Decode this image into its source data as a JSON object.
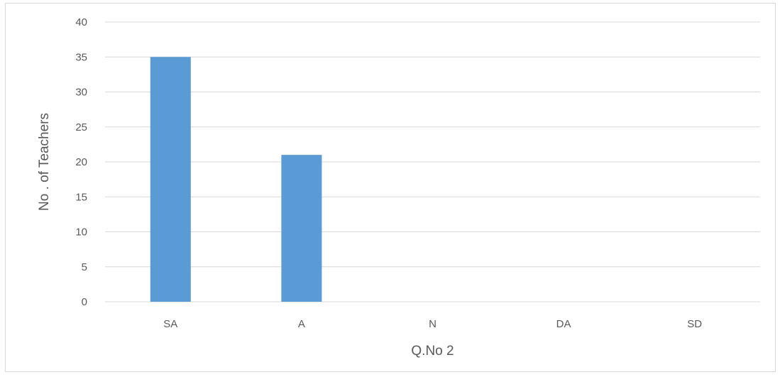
{
  "chart_data": {
    "type": "bar",
    "categories": [
      "SA",
      "A",
      "N",
      "DA",
      "SD"
    ],
    "values": [
      35,
      21,
      0,
      0,
      0
    ],
    "xlabel": "Q.No 2",
    "ylabel": "No . of Teachers",
    "ylim": [
      0,
      40
    ],
    "yticks": [
      "0",
      "5",
      "10",
      "15",
      "20",
      "25",
      "30",
      "35",
      "40"
    ],
    "grid": true,
    "bar_color": "#5b9bd5",
    "gridline_color": "#d9d9d9"
  }
}
